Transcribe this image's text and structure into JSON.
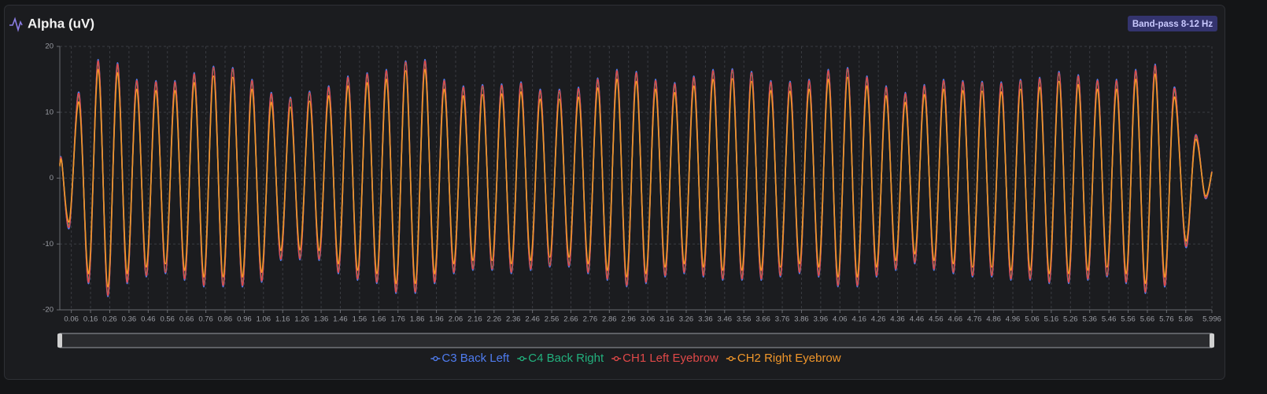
{
  "chart_data": {
    "type": "line",
    "title": "Alpha (uV)",
    "badge": "Band-pass 8-12 Hz",
    "x": [
      0,
      0.01,
      0.05,
      0.1,
      0.15,
      0.2,
      0.25,
      0.3,
      0.35,
      0.4,
      0.45,
      0.5,
      0.55,
      0.6,
      0.65,
      0.7,
      0.75,
      0.8,
      0.85,
      0.9,
      0.95,
      1,
      1.05,
      1.1,
      1.15,
      1.2,
      1.25,
      1.3,
      1.35,
      1.4,
      1.45,
      1.5,
      1.55,
      1.6,
      1.65,
      1.7,
      1.75,
      1.8,
      1.85,
      1.9,
      1.95,
      2,
      2.05,
      2.1,
      2.15,
      2.2,
      2.25,
      2.3,
      2.35,
      2.4,
      2.45,
      2.5,
      2.55,
      2.6,
      2.65,
      2.7,
      2.75,
      2.8,
      2.85,
      2.9,
      2.95,
      3,
      3.05,
      3.1,
      3.15,
      3.2,
      3.25,
      3.3,
      3.35,
      3.4,
      3.45,
      3.5,
      3.55,
      3.6,
      3.65,
      3.7,
      3.75,
      3.8,
      3.85,
      3.9,
      3.95,
      4,
      4.05,
      4.1,
      4.15,
      4.2,
      4.25,
      4.3,
      4.35,
      4.4,
      4.45,
      4.5,
      4.55,
      4.6,
      4.65,
      4.7,
      4.75,
      4.8,
      4.85,
      4.9,
      4.95,
      5,
      5.05,
      5.1,
      5.15,
      5.2,
      5.25,
      5.3,
      5.35,
      5.4,
      5.45,
      5.5,
      5.55,
      5.6,
      5.65,
      5.7,
      5.75,
      5.8,
      5.86,
      5.91,
      5.96,
      5.996
    ],
    "series": [
      {
        "name": "C3 Back Left",
        "color": "#4f7cf0",
        "values": [
          2,
          2.7,
          -7.5,
          13,
          -16,
          18,
          -18,
          17.5,
          -16,
          15,
          -15,
          14.8,
          -14.5,
          14.8,
          -15.5,
          16,
          -16.5,
          17,
          -16.5,
          16.8,
          -16.5,
          15,
          -15.8,
          13,
          -12.5,
          12.3,
          -12.4,
          13.2,
          -12.5,
          14,
          -14.5,
          15.5,
          -15.5,
          16,
          -16,
          16.5,
          -17.5,
          17.8,
          -17.5,
          18,
          -16,
          15,
          -14.5,
          14,
          -14,
          14.2,
          -14,
          14.3,
          -14.5,
          14.6,
          -14,
          13.5,
          -13.5,
          13.5,
          -13.5,
          13.8,
          -14.5,
          15.2,
          -15.5,
          16.5,
          -16.5,
          16.2,
          -16,
          15,
          -15,
          14.5,
          -14.5,
          15.5,
          -15,
          16.5,
          -15.5,
          16.6,
          -15.5,
          16.2,
          -15.5,
          14.8,
          -15,
          14.7,
          -14.5,
          15,
          -15,
          16.5,
          -16.5,
          16.8,
          -16.5,
          15.5,
          -15,
          14,
          -14,
          13,
          -13,
          14.2,
          -14,
          15,
          -14.5,
          14.8,
          -15,
          14.7,
          -15,
          14.6,
          -15.5,
          15,
          -15.5,
          15.3,
          -16,
          16.2,
          -16,
          15.7,
          -15.5,
          15,
          -15,
          15,
          -16,
          16.5,
          -17.5,
          17.3,
          -16.5,
          13.8,
          -10.5,
          6.5,
          -3,
          1
        ]
      },
      {
        "name": "C4 Back Right",
        "color": "#22b07d",
        "values": [
          2,
          2.6,
          -7,
          12.5,
          -15.5,
          17.5,
          -17.5,
          17,
          -15.5,
          14.5,
          -14.5,
          14.3,
          -14,
          14.3,
          -15,
          15.5,
          -16,
          16.5,
          -16,
          16.3,
          -16,
          14.5,
          -15.3,
          12.5,
          -12,
          11.8,
          -11.9,
          12.7,
          -12,
          13.5,
          -14,
          15,
          -15,
          15.5,
          -15.5,
          16,
          -17,
          17.3,
          -17,
          17.5,
          -15.5,
          14.5,
          -14,
          13.5,
          -13.5,
          13.7,
          -13.5,
          13.8,
          -14,
          14.1,
          -13.5,
          13,
          -13,
          13,
          -13,
          13.3,
          -14,
          14.7,
          -15,
          16,
          -16,
          15.7,
          -15.5,
          14.5,
          -14.5,
          14,
          -14,
          15,
          -14.5,
          16,
          -15,
          16.1,
          -15,
          15.7,
          -15,
          14.3,
          -14.5,
          14.2,
          -14,
          14.5,
          -14.5,
          16,
          -16,
          16.3,
          -16,
          15,
          -14.5,
          13.5,
          -13.5,
          12.5,
          -12.5,
          13.7,
          -13.5,
          14.5,
          -14,
          14.3,
          -14.5,
          14.2,
          -14.5,
          14.1,
          -15,
          14.5,
          -15,
          14.8,
          -15.5,
          15.7,
          -15.5,
          15.2,
          -15,
          14.5,
          -14.5,
          14.5,
          -15.5,
          16,
          -17,
          16.8,
          -16,
          13.3,
          -10,
          6.2,
          -2.8,
          1
        ]
      },
      {
        "name": "CH1 Left Eyebrow",
        "color": "#e04848",
        "values": [
          2,
          2.6,
          -7.3,
          12.8,
          -15.8,
          17.8,
          -17.8,
          17.3,
          -15.8,
          14.8,
          -14.8,
          14.6,
          -14.3,
          14.6,
          -15.3,
          15.8,
          -16.3,
          16.8,
          -16.3,
          16.6,
          -16.3,
          14.8,
          -15.6,
          12.8,
          -12.3,
          12.1,
          -12.2,
          13,
          -12.3,
          13.8,
          -14.3,
          15.3,
          -15.3,
          15.8,
          -15.8,
          16.3,
          -17.3,
          17.6,
          -17.3,
          17.8,
          -15.8,
          14.8,
          -14.3,
          13.8,
          -13.8,
          14,
          -13.8,
          14.1,
          -14.3,
          14.4,
          -13.8,
          13.3,
          -13.3,
          13.3,
          -13.3,
          13.6,
          -14.3,
          15,
          -15.3,
          16.3,
          -16.3,
          16,
          -15.8,
          14.8,
          -14.8,
          14.3,
          -14.3,
          15.3,
          -14.8,
          16.3,
          -15.3,
          16.4,
          -15.3,
          16,
          -15.3,
          14.6,
          -14.8,
          14.5,
          -14.3,
          14.8,
          -14.8,
          16.3,
          -16.3,
          16.6,
          -16.3,
          15.3,
          -14.8,
          13.8,
          -13.8,
          12.8,
          -12.8,
          14,
          -13.8,
          14.8,
          -14.3,
          14.6,
          -14.8,
          14.5,
          -14.8,
          14.4,
          -15.3,
          14.8,
          -15.3,
          15.1,
          -15.8,
          16,
          -15.8,
          15.5,
          -15.3,
          14.8,
          -14.8,
          14.8,
          -15.8,
          16.3,
          -17.3,
          17.1,
          -16.3,
          13.6,
          -10.3,
          6.4,
          -2.9,
          1
        ]
      },
      {
        "name": "CH2 Right Eyebrow",
        "color": "#f0962a",
        "values": [
          1.8,
          2.4,
          -6.5,
          11.5,
          -14.5,
          16.5,
          -16.5,
          16,
          -14.5,
          13.5,
          -13.5,
          13.3,
          -13,
          13.3,
          -14,
          14.5,
          -15,
          15.5,
          -15,
          15.3,
          -15,
          13.5,
          -14.3,
          11.5,
          -11,
          10.8,
          -10.9,
          11.7,
          -11,
          12.5,
          -13,
          14,
          -14,
          14.5,
          -14.5,
          15,
          -16,
          16.3,
          -16,
          16.5,
          -14.5,
          13.5,
          -13,
          12.5,
          -12.5,
          12.7,
          -12.5,
          12.8,
          -13,
          13.1,
          -12.5,
          12,
          -12,
          12,
          -12,
          12.3,
          -13,
          13.7,
          -14,
          15,
          -15,
          14.7,
          -14.5,
          13.5,
          -13.5,
          13,
          -13,
          14,
          -13.5,
          15,
          -14,
          15.1,
          -14,
          14.7,
          -14,
          13.3,
          -13.5,
          13.2,
          -13,
          13.5,
          -13.5,
          15,
          -15,
          15.3,
          -15,
          14,
          -13.5,
          12.5,
          -12.5,
          11.5,
          -11.5,
          12.7,
          -12.5,
          13.5,
          -13,
          13.3,
          -13.5,
          13.2,
          -13.5,
          13.1,
          -14,
          13.5,
          -14,
          13.8,
          -14.5,
          14.7,
          -14.5,
          14.2,
          -14,
          13.5,
          -13.5,
          13.5,
          -14.5,
          15,
          -16,
          15.8,
          -15,
          12.3,
          -9.5,
          5.8,
          -2.6,
          0.9
        ]
      }
    ],
    "xlim": [
      0,
      5.996
    ],
    "xticks": [
      0.06,
      0.16,
      0.26,
      0.36,
      0.46,
      0.56,
      0.66,
      0.76,
      0.86,
      0.96,
      1.06,
      1.16,
      1.26,
      1.36,
      1.46,
      1.56,
      1.66,
      1.76,
      1.86,
      1.96,
      2.06,
      2.16,
      2.26,
      2.36,
      2.46,
      2.56,
      2.66,
      2.76,
      2.86,
      2.96,
      3.06,
      3.16,
      3.26,
      3.36,
      3.46,
      3.56,
      3.66,
      3.76,
      3.86,
      3.96,
      4.06,
      4.16,
      4.26,
      4.36,
      4.46,
      4.56,
      4.66,
      4.76,
      4.86,
      4.96,
      5.06,
      5.16,
      5.26,
      5.36,
      5.46,
      5.56,
      5.66,
      5.76,
      5.86,
      5.996
    ],
    "ylim": [
      -20,
      20
    ],
    "yticks": [
      -20,
      -10,
      0,
      10,
      20
    ],
    "grid": true
  }
}
